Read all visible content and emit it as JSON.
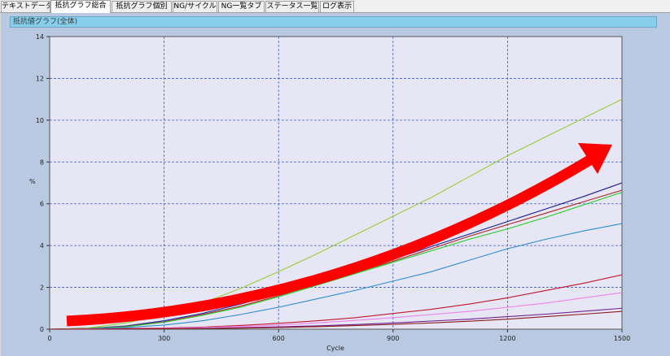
{
  "tabs": [
    {
      "label": "テキストデータ"
    },
    {
      "label": "抵抗グラフ総合"
    },
    {
      "label": "抵抗グラフ個別"
    },
    {
      "label": "NG/サイクル"
    },
    {
      "label": "NG一覧タブ"
    },
    {
      "label": "ステータス一覧"
    },
    {
      "label": "ログ表示"
    }
  ],
  "active_tab": "抵抗グラフ総合",
  "panel": {
    "title": "抵抗値グラフ(全体)"
  },
  "chart_data": {
    "type": "line",
    "title": "",
    "xlabel": "Cycle",
    "ylabel": "%",
    "xlim": [
      0,
      1500
    ],
    "ylim": [
      0,
      14
    ],
    "x_ticks": [
      "0",
      "300",
      "600",
      "900",
      "1200",
      "1500"
    ],
    "y_ticks": [
      "0",
      "2",
      "4",
      "6",
      "8",
      "10",
      "12",
      "14"
    ],
    "grid": true,
    "x": [
      0,
      100,
      200,
      300,
      400,
      500,
      600,
      700,
      800,
      900,
      1000,
      1100,
      1200,
      1300,
      1400,
      1500
    ],
    "series": [
      {
        "color": "#9acd32",
        "values": [
          0,
          0.05,
          0.3,
          0.7,
          1.25,
          1.95,
          2.75,
          3.6,
          4.5,
          5.4,
          6.3,
          7.3,
          8.3,
          9.2,
          10.1,
          11.0
        ]
      },
      {
        "color": "#1a1aa0",
        "values": [
          0,
          0.04,
          0.15,
          0.4,
          0.75,
          1.2,
          1.7,
          2.25,
          2.8,
          3.35,
          3.95,
          4.55,
          5.15,
          5.75,
          6.35,
          7.0
        ]
      },
      {
        "color": "#b22222",
        "values": [
          0,
          0.03,
          0.13,
          0.35,
          0.7,
          1.1,
          1.6,
          2.15,
          2.7,
          3.25,
          3.85,
          4.45,
          5.0,
          5.55,
          6.1,
          6.65
        ]
      },
      {
        "color": "#22cc22",
        "values": [
          0,
          0.03,
          0.12,
          0.33,
          0.66,
          1.05,
          1.55,
          2.1,
          2.65,
          3.2,
          3.75,
          4.3,
          4.8,
          5.35,
          5.95,
          6.55
        ]
      },
      {
        "color": "#2e8bd8",
        "values": [
          0,
          0.02,
          0.08,
          0.2,
          0.4,
          0.7,
          1.05,
          1.45,
          1.85,
          2.3,
          2.75,
          3.3,
          3.85,
          4.3,
          4.7,
          5.05
        ]
      },
      {
        "color": "#c0182a",
        "values": [
          0,
          0.01,
          0.03,
          0.06,
          0.1,
          0.18,
          0.28,
          0.4,
          0.55,
          0.75,
          0.95,
          1.2,
          1.5,
          1.85,
          2.2,
          2.6
        ]
      },
      {
        "color": "#ee82ee",
        "values": [
          0,
          0.01,
          0.02,
          0.04,
          0.08,
          0.13,
          0.2,
          0.3,
          0.42,
          0.55,
          0.7,
          0.85,
          1.05,
          1.25,
          1.5,
          1.75
        ]
      },
      {
        "color": "#702090",
        "values": [
          0,
          0.0,
          0.01,
          0.02,
          0.04,
          0.07,
          0.11,
          0.16,
          0.22,
          0.3,
          0.39,
          0.48,
          0.6,
          0.72,
          0.86,
          1.0
        ]
      },
      {
        "color": "#8b1a1a",
        "values": [
          0,
          0.0,
          0.01,
          0.02,
          0.03,
          0.05,
          0.08,
          0.12,
          0.17,
          0.23,
          0.3,
          0.38,
          0.48,
          0.6,
          0.72,
          0.85
        ]
      }
    ]
  },
  "annotation": {
    "color": "#ff0000",
    "label": "trend-arrow"
  },
  "colors": {
    "plot_bg": "#e6e6f5",
    "grid": "#3a5ad0",
    "panel_bg": "#b9c9e1",
    "title_bar": "#87ceeb"
  }
}
